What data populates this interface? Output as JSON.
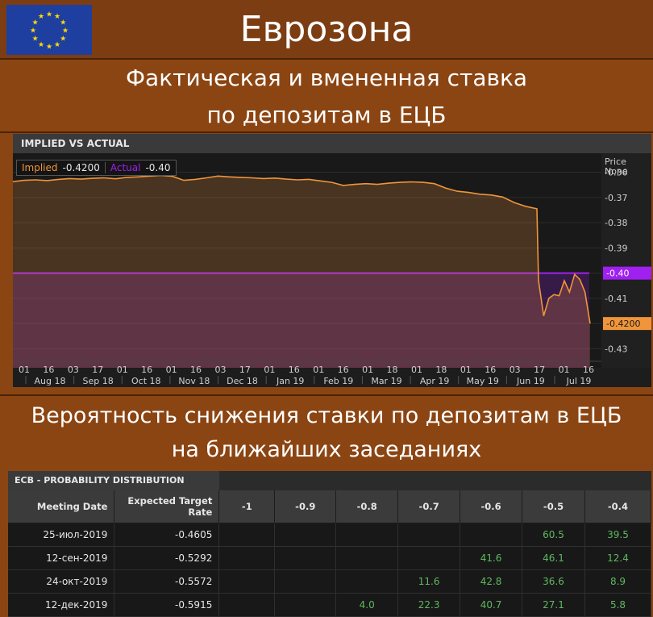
{
  "header": {
    "title": "Еврозона",
    "flag": "eu-flag"
  },
  "subtitle": {
    "line1": "Фактическая и вмененная ставка",
    "line2": "по депозитам в ЕЦБ"
  },
  "section2": {
    "line1": "Вероятность снижения ставки по депозитам в ЕЦБ",
    "line2": "на ближайших заседаниях"
  },
  "colors": {
    "implied": "#f0953a",
    "actual": "#a020f0",
    "background": "#8b4513",
    "positive": "#5fb85f"
  },
  "chart_panel": {
    "title": "IMPLIED VS ACTUAL",
    "legend": [
      {
        "name": "Implied",
        "value": "-0.4200"
      },
      {
        "name": "Actual",
        "value": "-0.40"
      }
    ],
    "price_label": "Price",
    "none_label": "None"
  },
  "chart_data": {
    "type": "line",
    "title": "IMPLIED VS ACTUAL",
    "y_ticks": [
      "-0.36",
      "-0.37",
      "-0.38",
      "-0.39",
      "-0.40",
      "-0.41",
      "-0.42",
      "-0.43"
    ],
    "ylim": [
      -0.435,
      -0.355
    ],
    "x_day_ticks": [
      "01",
      "16",
      "03",
      "17",
      "01",
      "16",
      "01",
      "16",
      "03",
      "17",
      "01",
      "16",
      "01",
      "16",
      "01",
      "18",
      "01",
      "18",
      "01",
      "16",
      "03",
      "17",
      "01",
      "16"
    ],
    "x_month_ticks": [
      "Aug 18",
      "Sep 18",
      "Oct 18",
      "Nov 18",
      "Dec 18",
      "Jan 19",
      "Feb 19",
      "Mar 19",
      "Apr 19",
      "May 19",
      "Jun 19",
      "Jul 19"
    ],
    "series": [
      {
        "name": "Implied",
        "last_label": "-0.4200",
        "values": [
          -0.3637,
          -0.3632,
          -0.363,
          -0.3633,
          -0.3628,
          -0.3625,
          -0.3627,
          -0.3624,
          -0.3622,
          -0.3626,
          -0.362,
          -0.3618,
          -0.3615,
          -0.3612,
          -0.3616,
          -0.3632,
          -0.3628,
          -0.3622,
          -0.3615,
          -0.3618,
          -0.362,
          -0.3622,
          -0.3625,
          -0.3623,
          -0.3627,
          -0.363,
          -0.3628,
          -0.3634,
          -0.364,
          -0.3652,
          -0.3648,
          -0.3645,
          -0.3648,
          -0.3643,
          -0.364,
          -0.3638,
          -0.364,
          -0.3645,
          -0.3663,
          -0.3675,
          -0.368,
          -0.3687,
          -0.369,
          -0.3698,
          -0.372,
          -0.3735,
          -0.3745,
          -0.403,
          -0.417,
          -0.41,
          -0.4085,
          -0.409,
          -0.403,
          -0.4075,
          -0.4005,
          -0.4025,
          -0.4075,
          -0.42
        ]
      },
      {
        "name": "Actual",
        "last_label": "-0.40",
        "values": [
          -0.4,
          -0.4
        ]
      }
    ]
  },
  "table": {
    "title": "ECB - PROBABILITY DISTRIBUTION",
    "col_date": "Meeting Date",
    "col_rate": "Expected Target Rate",
    "buckets": [
      "-1",
      "-0.9",
      "-0.8",
      "-0.7",
      "-0.6",
      "-0.5",
      "-0.4"
    ],
    "rows": [
      {
        "date": "25-июл-2019",
        "rate": "-0.4605",
        "values": [
          "",
          "",
          "",
          "",
          "",
          "60.5",
          "39.5"
        ]
      },
      {
        "date": "12-сен-2019",
        "rate": "-0.5292",
        "values": [
          "",
          "",
          "",
          "",
          "41.6",
          "46.1",
          "12.4"
        ]
      },
      {
        "date": "24-окт-2019",
        "rate": "-0.5572",
        "values": [
          "",
          "",
          "",
          "11.6",
          "42.8",
          "36.6",
          "8.9"
        ]
      },
      {
        "date": "12-дек-2019",
        "rate": "-0.5915",
        "values": [
          "",
          "",
          "4.0",
          "22.3",
          "40.7",
          "27.1",
          "5.8"
        ]
      }
    ]
  }
}
